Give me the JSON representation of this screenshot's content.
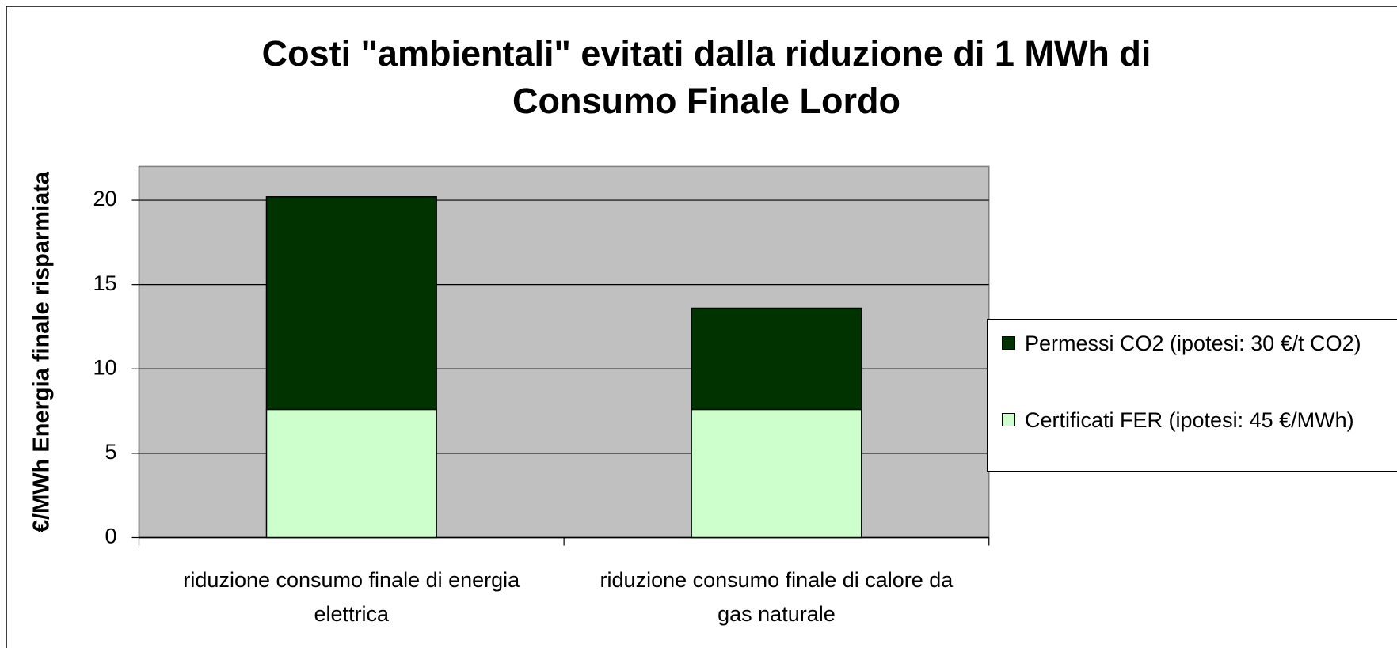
{
  "chart_data": {
    "type": "stacked_bar",
    "title": "Costi \"ambientali\" evitati dalla riduzione di 1 MWh di Consumo Finale Lordo",
    "y_label": "€/MWh Energia finale risparmiata",
    "categories": [
      "riduzione consumo finale di energia elettrica",
      "riduzione consumo finale di calore da gas naturale"
    ],
    "series": [
      {
        "name": "Permessi CO2 (ipotesi: 30 €/t CO2)",
        "color": "#003300",
        "values": [
          12.6,
          6.0
        ]
      },
      {
        "name": "Certificati FER (ipotesi: 45 €/MWh)",
        "color": "#ccffcc",
        "values": [
          7.6,
          7.6
        ]
      }
    ],
    "ylim": [
      0,
      22
    ],
    "yticks": [
      0,
      5,
      10,
      15,
      20
    ],
    "grid": true,
    "legend": "right",
    "plot_background": "#c0c0c0"
  }
}
